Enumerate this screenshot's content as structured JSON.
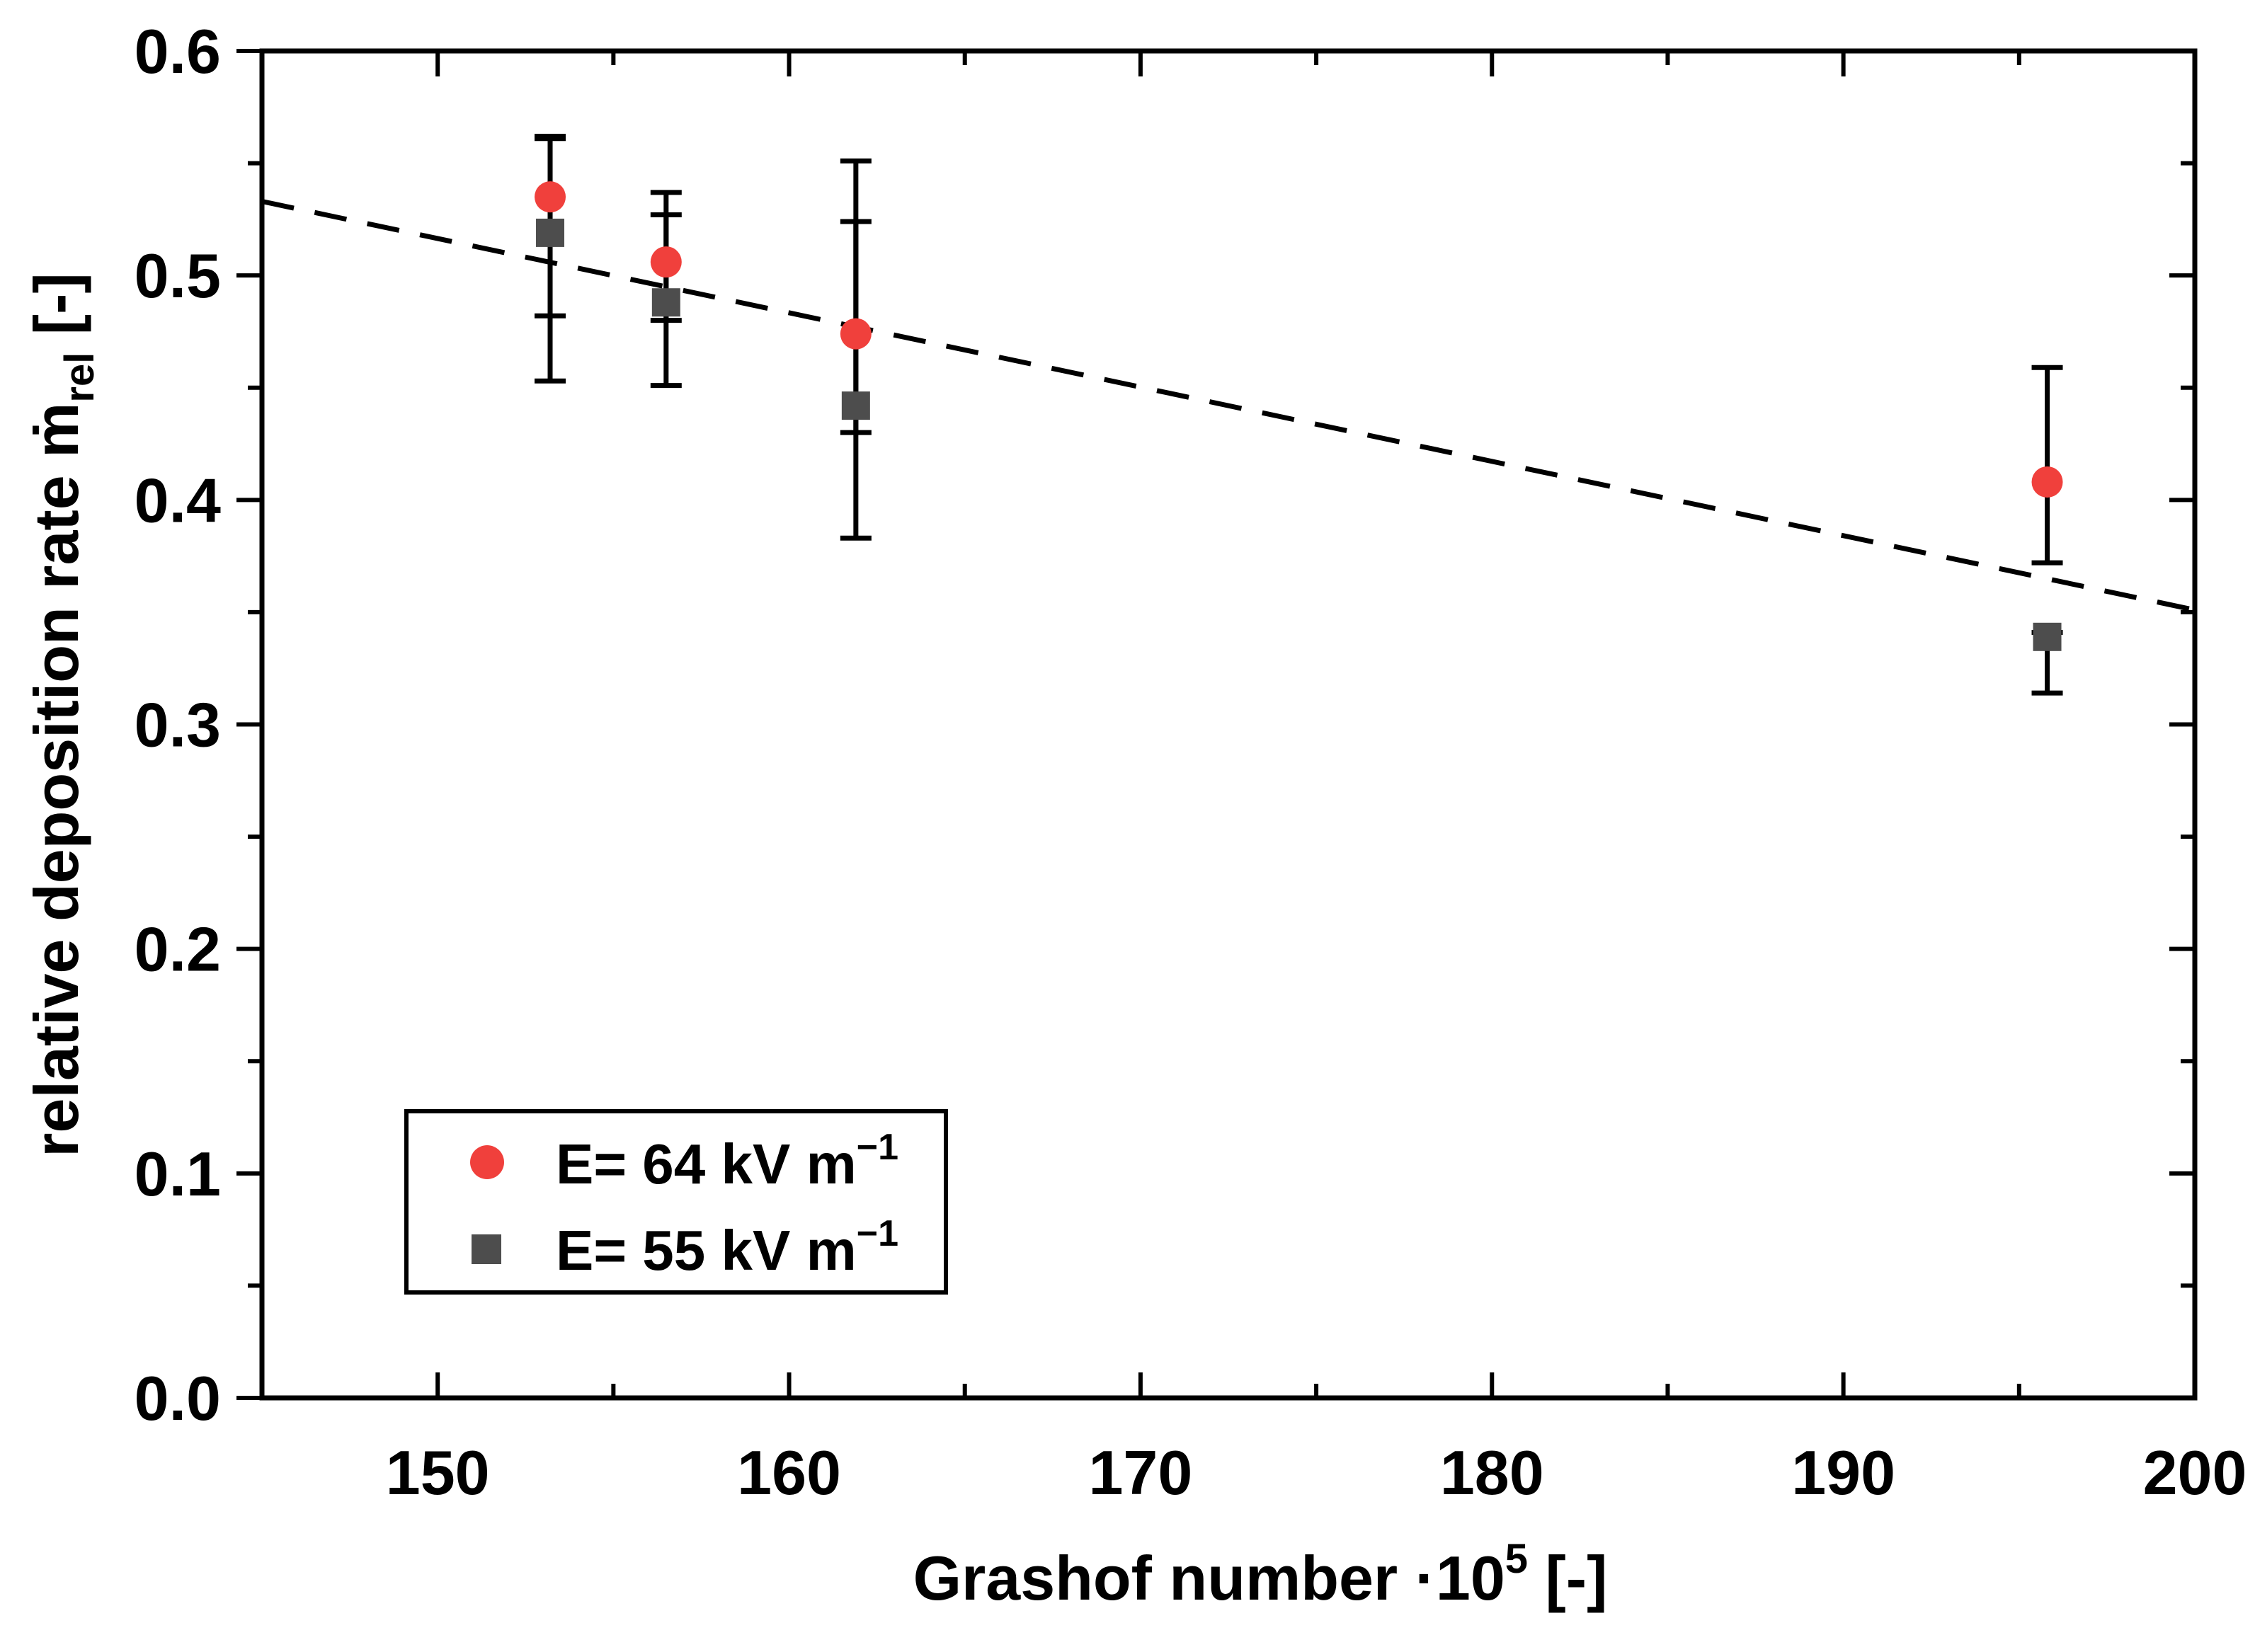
{
  "chart_data": {
    "type": "scatter",
    "title": "",
    "xlabel": "Grashof number ·10^5 [-]",
    "ylabel": "relative deposition rate ṁ_rel [-]",
    "xlabel_parts": {
      "main": "Grashof number ·10",
      "sup": "5",
      "tail": " [-]"
    },
    "ylabel_parts": {
      "main": "relative deposition rate ",
      "symbol": "ṁ",
      "sub": "rel",
      "tail": " [-]"
    },
    "xlim": [
      145,
      200
    ],
    "ylim": [
      0.0,
      0.6
    ],
    "x_ticks": [
      "150",
      "160",
      "170",
      "180",
      "190",
      "200"
    ],
    "x_tick_values": [
      150,
      160,
      170,
      180,
      190,
      200
    ],
    "y_ticks": [
      "0.0",
      "0.1",
      "0.2",
      "0.3",
      "0.4",
      "0.5",
      "0.6"
    ],
    "y_tick_values": [
      0.0,
      0.1,
      0.2,
      0.3,
      0.4,
      0.5,
      0.6
    ],
    "grid": false,
    "legend_position": "bottom-left",
    "series": [
      {
        "name": "E= 64 kV m⁻¹",
        "label_main": "E= 64 kV m",
        "label_sup": "−1",
        "marker": "circle",
        "color": "#f0403c",
        "x": [
          153.2,
          156.5,
          161.9,
          195.8
        ],
        "y": [
          0.535,
          0.506,
          0.474,
          0.408
        ],
        "y_err_low": [
          0.482,
          0.48,
          0.43,
          0.372
        ],
        "y_err_high": [
          0.561,
          0.527,
          0.524,
          0.459
        ]
      },
      {
        "name": "E= 55 kV m⁻¹",
        "label_main": "E= 55 kV m",
        "label_sup": "−1",
        "marker": "square",
        "color": "#4d4d4d",
        "x": [
          153.2,
          156.5,
          161.9,
          195.8
        ],
        "y": [
          0.519,
          0.488,
          0.442,
          0.339
        ],
        "y_err_low": [
          0.453,
          0.451,
          0.383,
          0.314
        ],
        "y_err_high": [
          0.562,
          0.537,
          0.551,
          0.341
        ]
      }
    ],
    "fit_line": {
      "style": "dashed",
      "color": "#000000",
      "x": [
        145,
        200
      ],
      "y": [
        0.533,
        0.351
      ]
    }
  }
}
